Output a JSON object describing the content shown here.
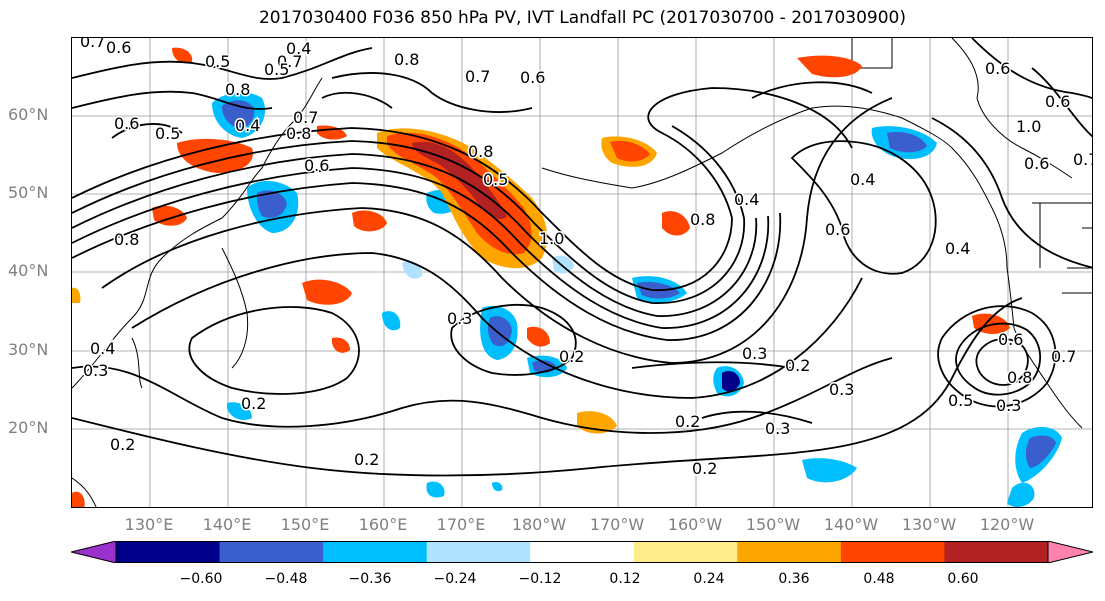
{
  "title": "2017030400 F036 850 hPa PV, IVT Landfall PC (2017030700 - 2017030900)",
  "lat_labels": [
    "60°N",
    "50°N",
    "40°N",
    "30°N",
    "20°N"
  ],
  "lon_labels": [
    "130°E",
    "140°E",
    "150°E",
    "160°E",
    "170°E",
    "180°W",
    "170°W",
    "160°W",
    "150°W",
    "140°W",
    "130°W",
    "120°W"
  ],
  "colorbar": {
    "ticks": [
      "−0.60",
      "−0.48",
      "−0.36",
      "−0.24",
      "−0.12",
      "0.12",
      "0.24",
      "0.36",
      "0.48",
      "0.60"
    ],
    "colors": [
      "#9932cc",
      "#00008b",
      "#3a5fcd",
      "#00bfff",
      "#b0e2ff",
      "#ffffff",
      "#ffec8b",
      "#ffa500",
      "#ff4500",
      "#b22222",
      "#ff82ab"
    ]
  },
  "contour_labels": [
    "0.7",
    "0.6",
    "0.4",
    "0.5",
    "0.7",
    "0.5",
    "0.8",
    "0.7",
    "0.6",
    "0.8",
    "0.4",
    "0.6",
    "0.5",
    "0.8",
    "0.7",
    "0.6",
    "0.8",
    "0.5",
    "1.0",
    "0.8",
    "0.4",
    "0.4",
    "0.6",
    "0.4",
    "0.8",
    "0.3",
    "0.3",
    "0.2",
    "0.4",
    "0.3",
    "0.2",
    "0.3",
    "0.2",
    "0.3",
    "0.2",
    "0.2",
    "0.2",
    "0.2",
    "0.3",
    "0.5",
    "0.8",
    "0.6",
    "0.7",
    "0.6",
    "0.6",
    "1.0",
    "0.7",
    "0.6"
  ]
}
